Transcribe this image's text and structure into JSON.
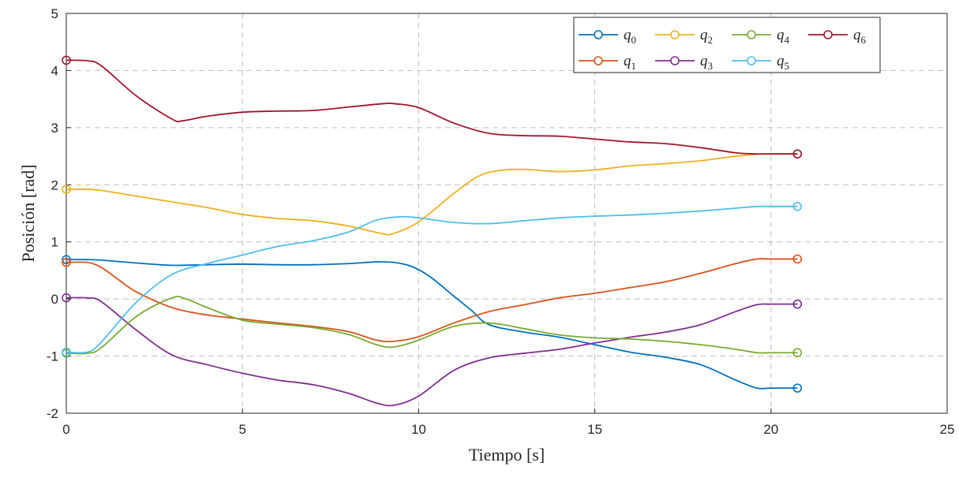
{
  "chart_data": {
    "type": "line",
    "title": "",
    "xlabel": "Tiempo [s]",
    "ylabel": "Posición [rad]",
    "xlim": [
      0,
      25
    ],
    "ylim": [
      -2,
      5
    ],
    "xticks": [
      0,
      5,
      10,
      15,
      20,
      25
    ],
    "yticks": [
      -2,
      -1,
      0,
      1,
      2,
      3,
      4,
      5
    ],
    "xtick_labels": [
      "0",
      "5",
      "10",
      "15",
      "20",
      "25"
    ],
    "ytick_labels": [
      "-2",
      "-1",
      "0",
      "1",
      "2",
      "3",
      "4",
      "5"
    ],
    "grid": true,
    "legend_position": "top-right",
    "legend_columns": 4,
    "series": [
      {
        "name": "q",
        "sub": "0",
        "color": "#0072BD",
        "x": [
          0,
          0.6,
          1,
          2,
          3,
          4,
          5,
          6,
          7,
          8,
          8.8,
          9.3,
          9.8,
          10.3,
          11,
          11.5,
          12,
          13,
          14,
          15,
          16,
          17,
          18,
          19,
          19.6,
          20,
          20.75
        ],
        "y": [
          0.69,
          0.69,
          0.68,
          0.63,
          0.59,
          0.6,
          0.61,
          0.6,
          0.6,
          0.62,
          0.65,
          0.64,
          0.57,
          0.4,
          0.05,
          -0.2,
          -0.45,
          -0.58,
          -0.67,
          -0.8,
          -0.93,
          -1.02,
          -1.15,
          -1.42,
          -1.56,
          -1.56,
          -1.56
        ]
      },
      {
        "name": "q",
        "sub": "1",
        "color": "#D95319",
        "x": [
          0,
          0.6,
          1,
          1.5,
          2,
          3,
          4,
          5,
          6,
          7,
          8,
          8.8,
          9.3,
          10,
          11,
          12,
          13,
          14,
          15,
          16,
          17,
          18,
          19,
          19.6,
          20,
          20.75
        ],
        "y": [
          0.64,
          0.64,
          0.55,
          0.33,
          0.12,
          -0.15,
          -0.28,
          -0.35,
          -0.42,
          -0.48,
          -0.57,
          -0.72,
          -0.74,
          -0.66,
          -0.42,
          -0.22,
          -0.1,
          0.02,
          0.1,
          0.2,
          0.3,
          0.45,
          0.62,
          0.7,
          0.7,
          0.7
        ]
      },
      {
        "name": "q",
        "sub": "2",
        "color": "#EDB120",
        "x": [
          0,
          0.6,
          1,
          2,
          3,
          4,
          5,
          6,
          7,
          8,
          9,
          9.3,
          10,
          11,
          11.7,
          12.3,
          13,
          14,
          15,
          16,
          17,
          18,
          19,
          19.8,
          20.75
        ],
        "y": [
          1.92,
          1.92,
          1.9,
          1.8,
          1.7,
          1.6,
          1.48,
          1.41,
          1.37,
          1.28,
          1.14,
          1.15,
          1.35,
          1.85,
          2.15,
          2.25,
          2.27,
          2.23,
          2.26,
          2.33,
          2.37,
          2.42,
          2.5,
          2.54,
          2.54
        ]
      },
      {
        "name": "q",
        "sub": "3",
        "color": "#7E2F8E",
        "x": [
          0,
          0.6,
          1,
          2,
          3,
          4,
          5,
          6,
          7,
          8,
          8.8,
          9.3,
          10,
          11,
          12,
          13,
          14,
          15,
          16,
          17,
          18,
          19,
          19.6,
          20,
          20.75
        ],
        "y": [
          0.02,
          0.02,
          -0.05,
          -0.55,
          -0.98,
          -1.15,
          -1.3,
          -1.42,
          -1.5,
          -1.65,
          -1.82,
          -1.86,
          -1.7,
          -1.25,
          -1.03,
          -0.95,
          -0.88,
          -0.77,
          -0.67,
          -0.58,
          -0.45,
          -0.22,
          -0.1,
          -0.09,
          -0.09
        ]
      },
      {
        "name": "q",
        "sub": "4",
        "color": "#77AC30",
        "x": [
          0,
          0.6,
          1,
          2,
          3,
          3.4,
          4,
          5,
          6,
          7,
          8,
          8.8,
          9.3,
          10,
          11,
          12,
          13,
          14,
          15,
          16,
          17,
          18,
          19,
          19.6,
          20,
          20.75
        ],
        "y": [
          -0.95,
          -0.95,
          -0.85,
          -0.3,
          0.02,
          0,
          -0.15,
          -0.37,
          -0.44,
          -0.5,
          -0.62,
          -0.8,
          -0.84,
          -0.72,
          -0.48,
          -0.42,
          -0.52,
          -0.63,
          -0.68,
          -0.7,
          -0.74,
          -0.8,
          -0.88,
          -0.94,
          -0.94,
          -0.94
        ]
      },
      {
        "name": "q",
        "sub": "5",
        "color": "#4DBEEE",
        "x": [
          0,
          0.6,
          1,
          2,
          3,
          4,
          5,
          6,
          7,
          8,
          8.8,
          9.5,
          10,
          11,
          12,
          13,
          14,
          15,
          16,
          17,
          18,
          19,
          19.6,
          20,
          20.75
        ],
        "y": [
          -0.93,
          -0.93,
          -0.75,
          -0.05,
          0.43,
          0.62,
          0.77,
          0.92,
          1.02,
          1.17,
          1.38,
          1.44,
          1.42,
          1.34,
          1.32,
          1.37,
          1.42,
          1.45,
          1.47,
          1.5,
          1.54,
          1.59,
          1.62,
          1.62,
          1.62
        ]
      },
      {
        "name": "q",
        "sub": "6",
        "color": "#A2142F",
        "x": [
          0,
          0.6,
          1,
          2,
          3,
          3.3,
          4,
          5,
          6,
          7,
          8,
          9,
          9.3,
          10,
          11,
          12,
          13,
          14,
          15,
          16,
          17,
          18,
          19,
          19.6,
          20,
          20.75
        ],
        "y": [
          4.18,
          4.17,
          4.08,
          3.55,
          3.15,
          3.12,
          3.2,
          3.27,
          3.29,
          3.3,
          3.36,
          3.42,
          3.42,
          3.35,
          3.08,
          2.9,
          2.86,
          2.85,
          2.8,
          2.75,
          2.72,
          2.65,
          2.56,
          2.54,
          2.54,
          2.54
        ]
      }
    ]
  }
}
